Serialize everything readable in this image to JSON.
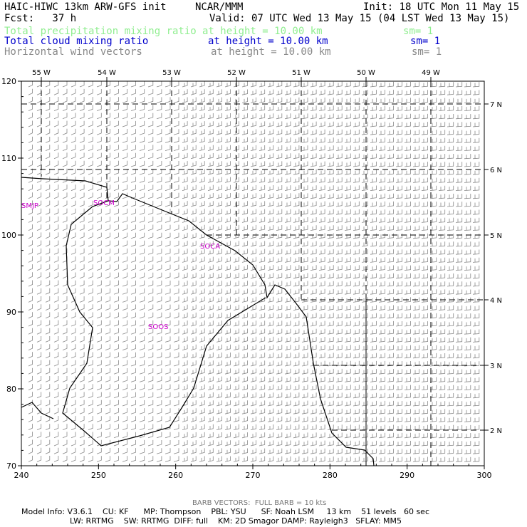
{
  "header": {
    "title": "HAIC-HIWC 13km ARW-GFS init",
    "org": "NCAR/MMM",
    "init": "Init: 18 UTC Mon 11 May 15",
    "fcst": "Fcst:   37 h",
    "valid": "Valid: 07 UTC Wed 13 May 15 (04 LST Wed 13 May 15)",
    "fields": [
      {
        "name": "Total precipitation mixing ratio",
        "height": "at height = 10.00 km",
        "sm": "sm= 1",
        "color": "#90ee90"
      },
      {
        "name": "Total cloud mixing ratio",
        "height": "at height = 10.00 km",
        "sm": "sm= 1",
        "color": "#0000cc"
      },
      {
        "name": "Horizontal wind vectors",
        "height": "at height = 10.00 km",
        "sm": "sm= 1",
        "color": "#888888"
      }
    ]
  },
  "map": {
    "x_ticks": [
      "240",
      "250",
      "260",
      "270",
      "280",
      "290",
      "300"
    ],
    "y_ticks": [
      "70",
      "80",
      "90",
      "100",
      "110",
      "120"
    ],
    "lon_labels": [
      "55 W",
      "54 W",
      "53 W",
      "52 W",
      "51 W",
      "50 W",
      "49 W"
    ],
    "lat_labels": [
      "7 N",
      "6 N",
      "5 N",
      "4 N",
      "3 N",
      "2 N"
    ],
    "stations": [
      "SMJP",
      "SOCM",
      "SOCA",
      "SOOS"
    ],
    "station_color": "#cc00cc",
    "barb_color": "#888888",
    "coast_color": "#000000"
  },
  "footer": {
    "barb_note": "BARB VECTORS:  FULL BARB = 10 kts",
    "model_line1": "Model Info: V3.6.1    CU: KF      MP: Thompson    PBL: YSU      SF: Noah LSM     13 km    51 levels   60 sec",
    "model_line2": "LW: RRTMG    SW: RRTMG  DIFF: full    KM: 2D Smagor DAMP: Rayleigh3   SFLAY: MM5"
  }
}
